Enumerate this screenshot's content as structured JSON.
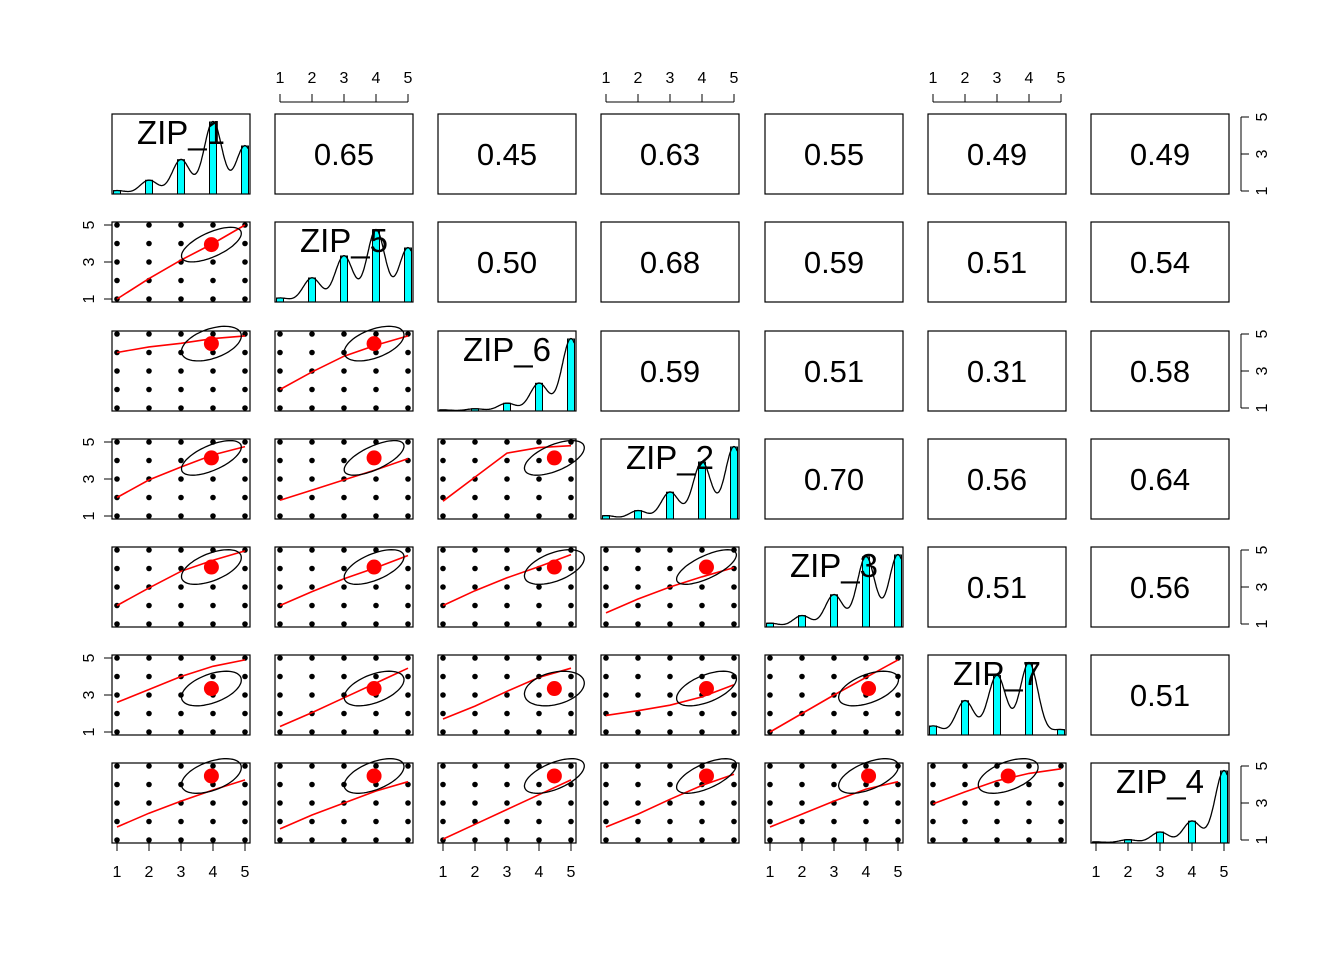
{
  "chart_data": {
    "type": "pairs",
    "variables": [
      "ZIP_1",
      "ZIP_5",
      "ZIP_6",
      "ZIP_2",
      "ZIP_3",
      "ZIP_7",
      "ZIP_4"
    ],
    "axis_range": [
      1,
      5
    ],
    "x_ticks": [
      "1",
      "2",
      "3",
      "4",
      "5"
    ],
    "y_ticks": [
      "1",
      "3",
      "5"
    ],
    "correlations": [
      [
        "",
        "0.65",
        "0.45",
        "0.63",
        "0.55",
        "0.49",
        "0.49"
      ],
      [
        "",
        "",
        "0.50",
        "0.68",
        "0.59",
        "0.51",
        "0.54"
      ],
      [
        "",
        "",
        "",
        "0.59",
        "0.51",
        "0.31",
        "0.58"
      ],
      [
        "",
        "",
        "",
        "",
        "0.70",
        "0.56",
        "0.64"
      ],
      [
        "",
        "",
        "",
        "",
        "",
        "0.51",
        "0.56"
      ],
      [
        "",
        "",
        "",
        "",
        "",
        "",
        "0.51"
      ],
      [
        "",
        "",
        "",
        "",
        "",
        "",
        ""
      ]
    ],
    "histograms": [
      [
        0.02,
        0.08,
        0.2,
        0.42,
        0.28
      ],
      [
        0.02,
        0.12,
        0.23,
        0.36,
        0.27
      ],
      [
        0.01,
        0.02,
        0.07,
        0.25,
        0.65
      ],
      [
        0.02,
        0.05,
        0.16,
        0.34,
        0.43
      ],
      [
        0.02,
        0.06,
        0.17,
        0.37,
        0.38
      ],
      [
        0.05,
        0.19,
        0.33,
        0.4,
        0.03
      ],
      [
        0.01,
        0.03,
        0.1,
        0.2,
        0.66
      ]
    ],
    "means": [
      3.95,
      3.94,
      4.48,
      4.14,
      4.08,
      3.35,
      4.46
    ],
    "loess": [
      [
        [
          1,
          1.0
        ],
        [
          2,
          2.1
        ],
        [
          3,
          3.1
        ],
        [
          4,
          4.0
        ],
        [
          5,
          5.0
        ]
      ],
      [
        [
          1,
          4.0
        ],
        [
          2,
          4.3
        ],
        [
          3,
          4.5
        ],
        [
          4,
          4.75
        ],
        [
          5,
          4.9
        ]
      ],
      [
        [
          1,
          2.0
        ],
        [
          2,
          2.95
        ],
        [
          3,
          3.8
        ],
        [
          4,
          4.4
        ],
        [
          5,
          4.9
        ]
      ],
      [
        [
          1,
          2.0
        ],
        [
          2,
          2.95
        ],
        [
          3,
          3.65
        ],
        [
          4,
          4.3
        ],
        [
          5,
          4.75
        ]
      ],
      [
        [
          1,
          1.85
        ],
        [
          2,
          2.4
        ],
        [
          3,
          2.95
        ],
        [
          4,
          3.5
        ],
        [
          5,
          4.1
        ]
      ],
      [
        [
          1,
          1.8
        ],
        [
          2,
          3.1
        ],
        [
          3,
          4.4
        ],
        [
          4,
          4.7
        ],
        [
          5,
          4.8
        ]
      ],
      [
        [
          1,
          2.0
        ],
        [
          2,
          2.95
        ],
        [
          3,
          3.85
        ],
        [
          4,
          4.45
        ],
        [
          5,
          4.95
        ]
      ],
      [
        [
          1,
          2.0
        ],
        [
          2,
          2.75
        ],
        [
          3,
          3.45
        ],
        [
          4,
          4.05
        ],
        [
          5,
          4.7
        ]
      ],
      [
        [
          1,
          2.0
        ],
        [
          2,
          2.8
        ],
        [
          3,
          3.5
        ],
        [
          4,
          4.1
        ],
        [
          5,
          4.75
        ]
      ],
      [
        [
          1,
          1.6
        ],
        [
          2,
          2.35
        ],
        [
          3,
          3.0
        ],
        [
          4,
          3.55
        ],
        [
          5,
          4.05
        ]
      ],
      [
        [
          1,
          2.6
        ],
        [
          2,
          3.3
        ],
        [
          3,
          4.0
        ],
        [
          4,
          4.55
        ],
        [
          5,
          4.9
        ]
      ],
      [
        [
          1,
          1.3
        ],
        [
          2,
          2.05
        ],
        [
          3,
          2.85
        ],
        [
          4,
          3.65
        ],
        [
          5,
          4.45
        ]
      ],
      [
        [
          1,
          1.7
        ],
        [
          2,
          2.4
        ],
        [
          3,
          3.2
        ],
        [
          4,
          3.95
        ],
        [
          5,
          4.45
        ]
      ],
      [
        [
          1,
          1.9
        ],
        [
          2,
          2.15
        ],
        [
          3,
          2.45
        ],
        [
          4,
          2.9
        ],
        [
          5,
          3.55
        ]
      ],
      [
        [
          1,
          1.0
        ],
        [
          2,
          2.0
        ],
        [
          3,
          3.0
        ],
        [
          4,
          3.95
        ],
        [
          5,
          4.9
        ]
      ],
      [
        [
          1,
          1.7
        ],
        [
          2,
          2.45
        ],
        [
          3,
          3.1
        ],
        [
          4,
          3.7
        ],
        [
          5,
          4.25
        ]
      ],
      [
        [
          1,
          1.6
        ],
        [
          2,
          2.35
        ],
        [
          3,
          3.0
        ],
        [
          4,
          3.65
        ],
        [
          5,
          4.15
        ]
      ],
      [
        [
          1,
          1.05
        ],
        [
          2,
          1.85
        ],
        [
          3,
          2.65
        ],
        [
          4,
          3.45
        ],
        [
          5,
          4.25
        ]
      ],
      [
        [
          1,
          1.7
        ],
        [
          2,
          2.4
        ],
        [
          3,
          3.2
        ],
        [
          4,
          3.95
        ],
        [
          5,
          4.55
        ]
      ],
      [
        [
          1,
          1.7
        ],
        [
          2,
          2.4
        ],
        [
          3,
          3.1
        ],
        [
          4,
          3.75
        ],
        [
          5,
          4.15
        ]
      ],
      [
        [
          1,
          2.95
        ],
        [
          2,
          3.6
        ],
        [
          3,
          4.2
        ],
        [
          4,
          4.6
        ],
        [
          5,
          4.85
        ]
      ]
    ],
    "ellipse_corr": [
      [
        0.65
      ],
      [
        0.45,
        0.5
      ],
      [
        0.63,
        0.68,
        0.59
      ],
      [
        0.55,
        0.59,
        0.51,
        0.7
      ],
      [
        0.49,
        0.51,
        0.31,
        0.56,
        0.51
      ],
      [
        0.49,
        0.54,
        0.58,
        0.64,
        0.56,
        0.51
      ]
    ],
    "colors": {
      "bar_fill": "#00ffff",
      "fit_line": "#ff0000",
      "mean_point": "#ff0000",
      "points": "#000000",
      "ellipse": "#000000"
    }
  }
}
